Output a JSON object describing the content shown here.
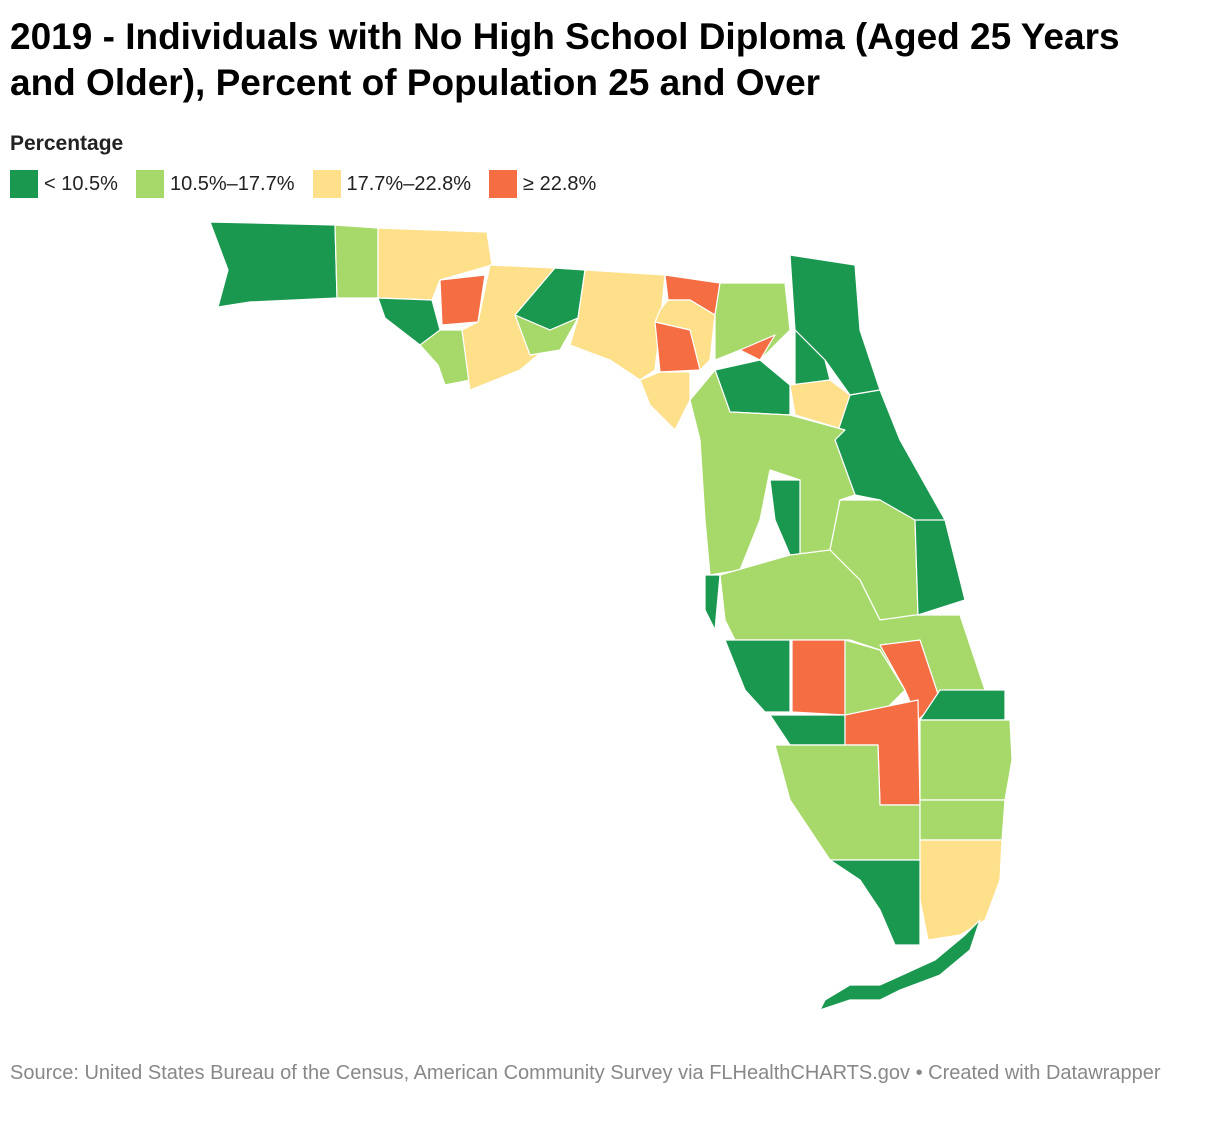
{
  "title": "2019 - Individuals with No High School Diploma (Aged 25 Years and Older), Percent of Population 25 and Over",
  "legend": {
    "title": "Percentage",
    "items": [
      {
        "label": "< 10.5%",
        "color": "#1a9850"
      },
      {
        "label": "10.5%–17.7%",
        "color": "#a6d96a"
      },
      {
        "label": "17.7%–22.8%",
        "color": "#fee08b"
      },
      {
        "label": "≥ 22.8%",
        "color": "#f46d43"
      }
    ]
  },
  "source": "Source: United States Bureau of the Census, American Community Survey via FLHealthCHARTS.gov • Created with Datawrapper"
}
